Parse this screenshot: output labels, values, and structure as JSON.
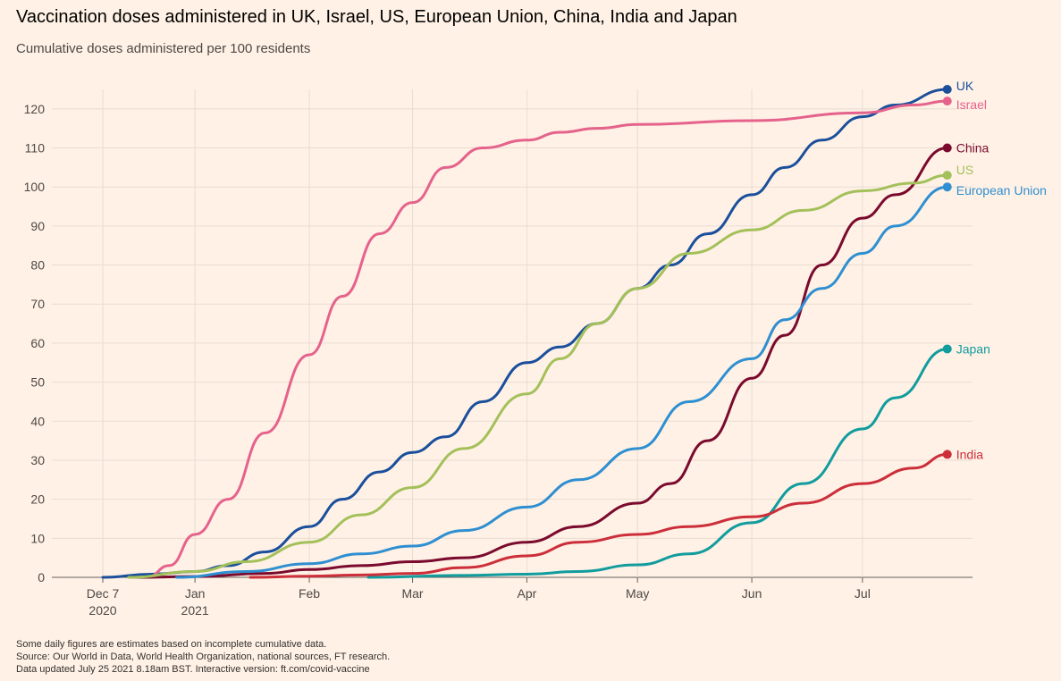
{
  "title": "Vaccination doses administered in UK, Israel, US, European Union, China, India and Japan",
  "subtitle": "Cumulative doses administered per 100 residents",
  "notes": [
    "Some daily figures are estimates based on incomplete cumulative data.",
    "Source: Our World in Data, World Health Organization, national sources, FT research.",
    "Data updated July 25 2021 8.18am BST. Interactive version: ft.com/covid-vaccine"
  ],
  "colors": {
    "background": "#fff1e5",
    "grid": "#e8dcd2",
    "axis": "#66605c"
  },
  "chart_data": {
    "type": "line",
    "title": "Vaccination doses administered in UK, Israel, US, European Union, China, India and Japan",
    "ylabel": "Cumulative doses administered per 100 residents",
    "ylim": [
      0,
      125
    ],
    "xlim": [
      "2020-12-07",
      "2021-07-31"
    ],
    "grid": true,
    "y_ticks": [
      0,
      10,
      20,
      30,
      40,
      50,
      60,
      70,
      80,
      90,
      100,
      110,
      120
    ],
    "x_ticks": [
      {
        "date": "2020-12-07",
        "label": "Dec 7",
        "label2": "2020"
      },
      {
        "date": "2021-01-01",
        "label": "Jan",
        "label2": "2021"
      },
      {
        "date": "2021-02-01",
        "label": "Feb",
        "label2": ""
      },
      {
        "date": "2021-03-01",
        "label": "Mar",
        "label2": ""
      },
      {
        "date": "2021-04-01",
        "label": "Apr",
        "label2": ""
      },
      {
        "date": "2021-05-01",
        "label": "May",
        "label2": ""
      },
      {
        "date": "2021-06-01",
        "label": "Jun",
        "label2": ""
      },
      {
        "date": "2021-07-01",
        "label": "Jul",
        "label2": ""
      }
    ],
    "legend": "direct labels at line ends",
    "series": [
      {
        "name": "UK",
        "color": "#1a4f9c",
        "points": [
          [
            "2020-12-07",
            0
          ],
          [
            "2020-12-20",
            0.8
          ],
          [
            "2021-01-01",
            1.5
          ],
          [
            "2021-01-10",
            3.0
          ],
          [
            "2021-01-20",
            6.5
          ],
          [
            "2021-02-01",
            13
          ],
          [
            "2021-02-10",
            20
          ],
          [
            "2021-02-20",
            27
          ],
          [
            "2021-03-01",
            32
          ],
          [
            "2021-03-10",
            36
          ],
          [
            "2021-03-20",
            45
          ],
          [
            "2021-04-01",
            55
          ],
          [
            "2021-04-10",
            59
          ],
          [
            "2021-04-20",
            65
          ],
          [
            "2021-05-01",
            74
          ],
          [
            "2021-05-10",
            80
          ],
          [
            "2021-05-20",
            88
          ],
          [
            "2021-06-01",
            98
          ],
          [
            "2021-06-10",
            105
          ],
          [
            "2021-06-20",
            112
          ],
          [
            "2021-07-01",
            118
          ],
          [
            "2021-07-10",
            121
          ],
          [
            "2021-07-24",
            125
          ]
        ]
      },
      {
        "name": "Israel",
        "color": "#e5628c",
        "points": [
          [
            "2020-12-19",
            0
          ],
          [
            "2020-12-25",
            3
          ],
          [
            "2021-01-01",
            11
          ],
          [
            "2021-01-10",
            20
          ],
          [
            "2021-01-20",
            37
          ],
          [
            "2021-02-01",
            57
          ],
          [
            "2021-02-10",
            72
          ],
          [
            "2021-02-20",
            88
          ],
          [
            "2021-03-01",
            96
          ],
          [
            "2021-03-10",
            105
          ],
          [
            "2021-03-20",
            110
          ],
          [
            "2021-04-01",
            112
          ],
          [
            "2021-04-10",
            114
          ],
          [
            "2021-04-20",
            115
          ],
          [
            "2021-05-01",
            116
          ],
          [
            "2021-06-01",
            117
          ],
          [
            "2021-07-01",
            119
          ],
          [
            "2021-07-15",
            121
          ],
          [
            "2021-07-24",
            122
          ]
        ]
      },
      {
        "name": "China",
        "color": "#7a0a2e",
        "points": [
          [
            "2020-12-15",
            0
          ],
          [
            "2021-01-01",
            0.2
          ],
          [
            "2021-01-20",
            1
          ],
          [
            "2021-02-01",
            2
          ],
          [
            "2021-02-15",
            3
          ],
          [
            "2021-03-01",
            4
          ],
          [
            "2021-03-15",
            5
          ],
          [
            "2021-04-01",
            9
          ],
          [
            "2021-04-15",
            13
          ],
          [
            "2021-05-01",
            19
          ],
          [
            "2021-05-10",
            24
          ],
          [
            "2021-05-20",
            35
          ],
          [
            "2021-06-01",
            51
          ],
          [
            "2021-06-10",
            62
          ],
          [
            "2021-06-20",
            80
          ],
          [
            "2021-07-01",
            92
          ],
          [
            "2021-07-10",
            98
          ],
          [
            "2021-07-24",
            110
          ]
        ]
      },
      {
        "name": "US",
        "color": "#a3c05a",
        "points": [
          [
            "2020-12-14",
            0
          ],
          [
            "2021-01-01",
            1.5
          ],
          [
            "2021-01-15",
            4
          ],
          [
            "2021-02-01",
            9
          ],
          [
            "2021-02-15",
            16
          ],
          [
            "2021-03-01",
            23
          ],
          [
            "2021-03-15",
            33
          ],
          [
            "2021-04-01",
            47
          ],
          [
            "2021-04-10",
            56
          ],
          [
            "2021-04-20",
            65
          ],
          [
            "2021-05-01",
            74
          ],
          [
            "2021-05-15",
            83
          ],
          [
            "2021-06-01",
            89
          ],
          [
            "2021-06-15",
            94
          ],
          [
            "2021-07-01",
            99
          ],
          [
            "2021-07-15",
            101
          ],
          [
            "2021-07-24",
            103
          ]
        ]
      },
      {
        "name": "European Union",
        "color": "#2e8fd1",
        "points": [
          [
            "2020-12-27",
            0
          ],
          [
            "2021-01-15",
            1.5
          ],
          [
            "2021-02-01",
            3.5
          ],
          [
            "2021-02-15",
            6
          ],
          [
            "2021-03-01",
            8
          ],
          [
            "2021-03-15",
            12
          ],
          [
            "2021-04-01",
            18
          ],
          [
            "2021-04-15",
            25
          ],
          [
            "2021-05-01",
            33
          ],
          [
            "2021-05-15",
            45
          ],
          [
            "2021-06-01",
            56
          ],
          [
            "2021-06-10",
            66
          ],
          [
            "2021-06-20",
            74
          ],
          [
            "2021-07-01",
            83
          ],
          [
            "2021-07-10",
            90
          ],
          [
            "2021-07-24",
            100
          ]
        ]
      },
      {
        "name": "Japan",
        "color": "#119c9e",
        "points": [
          [
            "2021-02-17",
            0
          ],
          [
            "2021-03-15",
            0.5
          ],
          [
            "2021-04-01",
            0.8
          ],
          [
            "2021-04-15",
            1.5
          ],
          [
            "2021-05-01",
            3.2
          ],
          [
            "2021-05-15",
            6
          ],
          [
            "2021-06-01",
            14
          ],
          [
            "2021-06-15",
            24
          ],
          [
            "2021-07-01",
            38
          ],
          [
            "2021-07-10",
            46
          ],
          [
            "2021-07-24",
            58.5
          ]
        ]
      },
      {
        "name": "India",
        "color": "#cc2e3a",
        "points": [
          [
            "2021-01-16",
            0
          ],
          [
            "2021-02-01",
            0.3
          ],
          [
            "2021-02-15",
            0.6
          ],
          [
            "2021-03-01",
            1
          ],
          [
            "2021-03-15",
            2.5
          ],
          [
            "2021-04-01",
            5.5
          ],
          [
            "2021-04-15",
            9
          ],
          [
            "2021-05-01",
            11
          ],
          [
            "2021-05-15",
            13
          ],
          [
            "2021-06-01",
            15.5
          ],
          [
            "2021-06-15",
            19
          ],
          [
            "2021-07-01",
            24
          ],
          [
            "2021-07-15",
            28
          ],
          [
            "2021-07-24",
            31.5
          ]
        ]
      }
    ]
  }
}
